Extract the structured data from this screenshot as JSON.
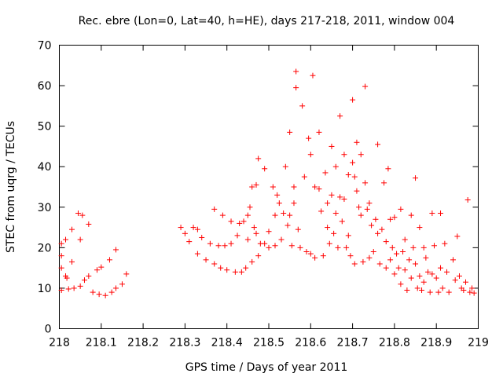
{
  "chart_data": {
    "type": "scatter",
    "title": "Rec. ebre (Lon=0, Lat=40, h=HE), days 217-218, 2011, window 004",
    "xlabel": "GPS time / Days of year 2011",
    "ylabel": "STEC from uqrg / TECUs",
    "xlim": [
      218,
      219
    ],
    "ylim": [
      0,
      70
    ],
    "xticks": [
      "218",
      "218.1",
      "218.2",
      "218.3",
      "218.4",
      "218.5",
      "218.6",
      "218.7",
      "218.8",
      "218.9",
      "219"
    ],
    "yticks": [
      "0",
      "10",
      "20",
      "30",
      "40",
      "50",
      "60",
      "70"
    ],
    "grid": false,
    "marker": "+",
    "color": "#ff0000",
    "points": [
      [
        218.005,
        9.5
      ],
      [
        218.005,
        15
      ],
      [
        218.005,
        18
      ],
      [
        218.005,
        21
      ],
      [
        218.015,
        22
      ],
      [
        218.015,
        13
      ],
      [
        218.018,
        12.5
      ],
      [
        218.022,
        9.8
      ],
      [
        218.03,
        24.5
      ],
      [
        218.03,
        16.5
      ],
      [
        218.035,
        10
      ],
      [
        218.045,
        28.5
      ],
      [
        218.05,
        22
      ],
      [
        218.05,
        10.5
      ],
      [
        218.055,
        28
      ],
      [
        218.06,
        12
      ],
      [
        218.07,
        25.8
      ],
      [
        218.07,
        13
      ],
      [
        218.08,
        9
      ],
      [
        218.09,
        14.5
      ],
      [
        218.095,
        8.5
      ],
      [
        218.1,
        15.2
      ],
      [
        218.11,
        8.2
      ],
      [
        218.12,
        17
      ],
      [
        218.125,
        9
      ],
      [
        218.135,
        19.5
      ],
      [
        218.135,
        10
      ],
      [
        218.15,
        11
      ],
      [
        218.16,
        13.5
      ],
      [
        218.29,
        25
      ],
      [
        218.3,
        23.5
      ],
      [
        218.31,
        21.5
      ],
      [
        218.32,
        25
      ],
      [
        218.33,
        24.5
      ],
      [
        218.33,
        18.5
      ],
      [
        218.34,
        22.5
      ],
      [
        218.35,
        17
      ],
      [
        218.36,
        21
      ],
      [
        218.37,
        16
      ],
      [
        218.37,
        29.5
      ],
      [
        218.38,
        20.5
      ],
      [
        218.385,
        15
      ],
      [
        218.39,
        28
      ],
      [
        218.395,
        20.5
      ],
      [
        218.4,
        14.5
      ],
      [
        218.41,
        26.5
      ],
      [
        218.41,
        21
      ],
      [
        218.42,
        14
      ],
      [
        218.425,
        23
      ],
      [
        218.43,
        26
      ],
      [
        218.435,
        14
      ],
      [
        218.44,
        26.5
      ],
      [
        218.445,
        15
      ],
      [
        218.45,
        28
      ],
      [
        218.45,
        22
      ],
      [
        218.455,
        30
      ],
      [
        218.46,
        35
      ],
      [
        218.46,
        16.5
      ],
      [
        218.465,
        25
      ],
      [
        218.47,
        35.5
      ],
      [
        218.47,
        23.5
      ],
      [
        218.475,
        42
      ],
      [
        218.475,
        18
      ],
      [
        218.48,
        21
      ],
      [
        218.49,
        39.5
      ],
      [
        218.49,
        21
      ],
      [
        218.5,
        24
      ],
      [
        218.5,
        20
      ],
      [
        218.51,
        35
      ],
      [
        218.515,
        28
      ],
      [
        218.515,
        20.5
      ],
      [
        218.52,
        33
      ],
      [
        218.525,
        31
      ],
      [
        218.53,
        22
      ],
      [
        218.535,
        28.5
      ],
      [
        218.54,
        40
      ],
      [
        218.545,
        25.5
      ],
      [
        218.55,
        48.5
      ],
      [
        218.55,
        28
      ],
      [
        218.555,
        20.5
      ],
      [
        218.56,
        35
      ],
      [
        218.56,
        31
      ],
      [
        218.565,
        63.5
      ],
      [
        218.565,
        59.5
      ],
      [
        218.57,
        24.5
      ],
      [
        218.575,
        20
      ],
      [
        218.58,
        55
      ],
      [
        218.585,
        37.5
      ],
      [
        218.59,
        19
      ],
      [
        218.595,
        47
      ],
      [
        218.6,
        43
      ],
      [
        218.6,
        18.5
      ],
      [
        218.605,
        62.5
      ],
      [
        218.61,
        35
      ],
      [
        218.61,
        17.5
      ],
      [
        218.62,
        48.5
      ],
      [
        218.62,
        34.5
      ],
      [
        218.625,
        29
      ],
      [
        218.63,
        18
      ],
      [
        218.635,
        38.5
      ],
      [
        218.64,
        31
      ],
      [
        218.64,
        25
      ],
      [
        218.645,
        21
      ],
      [
        218.65,
        45
      ],
      [
        218.65,
        33
      ],
      [
        218.655,
        23.5
      ],
      [
        218.66,
        40
      ],
      [
        218.66,
        28.5
      ],
      [
        218.665,
        20
      ],
      [
        218.67,
        52.5
      ],
      [
        218.67,
        32.5
      ],
      [
        218.675,
        26.5
      ],
      [
        218.68,
        43
      ],
      [
        218.68,
        32
      ],
      [
        218.685,
        20
      ],
      [
        218.69,
        38
      ],
      [
        218.69,
        23
      ],
      [
        218.695,
        18
      ],
      [
        218.7,
        56.5
      ],
      [
        218.7,
        41
      ],
      [
        218.705,
        37.5
      ],
      [
        218.705,
        16
      ],
      [
        218.71,
        46
      ],
      [
        218.71,
        34
      ],
      [
        218.715,
        30
      ],
      [
        218.72,
        43
      ],
      [
        218.72,
        28
      ],
      [
        218.725,
        16.5
      ],
      [
        218.73,
        59.8
      ],
      [
        218.73,
        36
      ],
      [
        218.735,
        29.5
      ],
      [
        218.74,
        31
      ],
      [
        218.74,
        17.5
      ],
      [
        218.745,
        25.5
      ],
      [
        218.75,
        19
      ],
      [
        218.755,
        27
      ],
      [
        218.76,
        45.5
      ],
      [
        218.76,
        23.5
      ],
      [
        218.765,
        16
      ],
      [
        218.77,
        24.5
      ],
      [
        218.775,
        36
      ],
      [
        218.78,
        21.5
      ],
      [
        218.78,
        15
      ],
      [
        218.785,
        39.5
      ],
      [
        218.79,
        27
      ],
      [
        218.79,
        17
      ],
      [
        218.795,
        20
      ],
      [
        218.8,
        27.5
      ],
      [
        218.8,
        13.5
      ],
      [
        218.805,
        18.5
      ],
      [
        218.81,
        15
      ],
      [
        218.815,
        29.5
      ],
      [
        218.815,
        11
      ],
      [
        218.82,
        19
      ],
      [
        218.825,
        22
      ],
      [
        218.825,
        14.5
      ],
      [
        218.83,
        9.5
      ],
      [
        218.835,
        17
      ],
      [
        218.84,
        28
      ],
      [
        218.84,
        12.5
      ],
      [
        218.845,
        20
      ],
      [
        218.85,
        37.2
      ],
      [
        218.85,
        16
      ],
      [
        218.855,
        10
      ],
      [
        218.86,
        25
      ],
      [
        218.86,
        13
      ],
      [
        218.865,
        9.5
      ],
      [
        218.87,
        20
      ],
      [
        218.87,
        11.5
      ],
      [
        218.875,
        17.5
      ],
      [
        218.88,
        14
      ],
      [
        218.885,
        9
      ],
      [
        218.89,
        28.5
      ],
      [
        218.89,
        13.5
      ],
      [
        218.895,
        20.5
      ],
      [
        218.9,
        12.5
      ],
      [
        218.905,
        9
      ],
      [
        218.91,
        28.5
      ],
      [
        218.91,
        15
      ],
      [
        218.915,
        10
      ],
      [
        218.92,
        21
      ],
      [
        218.925,
        14
      ],
      [
        218.93,
        9
      ],
      [
        218.94,
        17
      ],
      [
        218.945,
        12
      ],
      [
        218.95,
        22.8
      ],
      [
        218.955,
        13
      ],
      [
        218.96,
        10
      ],
      [
        218.965,
        9.5
      ],
      [
        218.97,
        11.5
      ],
      [
        218.975,
        31.8
      ],
      [
        218.98,
        9
      ],
      [
        218.985,
        10
      ],
      [
        218.99,
        8.8
      ]
    ]
  }
}
